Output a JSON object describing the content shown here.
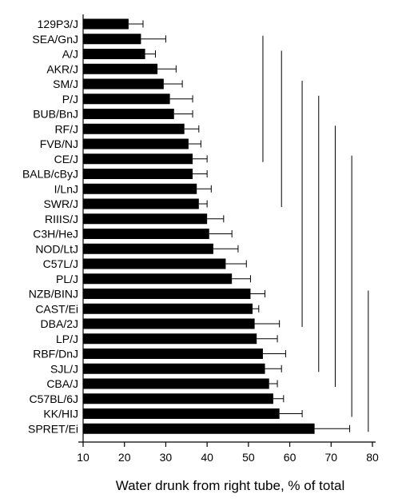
{
  "chart_data": {
    "type": "bar",
    "orientation": "horizontal",
    "title": "",
    "xlabel": "Water drunk from right tube, % of total",
    "ylabel": "",
    "xlim": [
      10,
      80
    ],
    "xticks": [
      10,
      20,
      30,
      40,
      50,
      60,
      70,
      80
    ],
    "grid": false,
    "error_bars": "one-sided (right)",
    "bar_color": "#000000",
    "categories": [
      "129P3/J",
      "SEA/GnJ",
      "A/J",
      "AKR/J",
      "SM/J",
      "P/J",
      "BUB/BnJ",
      "RF/J",
      "FVB/NJ",
      "CE/J",
      "BALB/cByJ",
      "I/LnJ",
      "SWR/J",
      "RIIIS/J",
      "C3H/HeJ",
      "NOD/LtJ",
      "C57L/J",
      "PL/J",
      "NZB/BINJ",
      "CAST/Ei",
      "DBA/2J",
      "LP/J",
      "RBF/DnJ",
      "SJL/J",
      "CBA/J",
      "C57BL/6J",
      "KK/HIJ",
      "SPRET/Ei"
    ],
    "values": [
      21.0,
      24.0,
      25.0,
      28.0,
      29.5,
      31.0,
      32.0,
      34.5,
      35.5,
      36.5,
      36.5,
      37.5,
      38.0,
      40.0,
      40.5,
      41.5,
      44.5,
      46.0,
      50.5,
      51.0,
      51.5,
      52.0,
      53.5,
      54.0,
      55.0,
      56.0,
      57.5,
      66.0
    ],
    "errors": [
      3.5,
      6.0,
      2.5,
      4.5,
      4.5,
      5.5,
      4.5,
      3.5,
      3.0,
      3.5,
      3.5,
      3.5,
      2.0,
      4.0,
      5.5,
      6.0,
      5.0,
      4.5,
      3.5,
      1.5,
      6.0,
      5.0,
      5.5,
      4.0,
      2.0,
      2.5,
      5.5,
      8.5
    ],
    "group_lines": [
      {
        "x": 53.5,
        "from": "SEA/GnJ",
        "to": "CE/J"
      },
      {
        "x": 58.0,
        "from": "A/J",
        "to": "SWR/J"
      },
      {
        "x": 63.0,
        "from": "SM/J",
        "to": "DBA/2J"
      },
      {
        "x": 67.0,
        "from": "P/J",
        "to": "SJL/J"
      },
      {
        "x": 71.0,
        "from": "RF/J",
        "to": "CBA/J"
      },
      {
        "x": 75.0,
        "from": "CE/J",
        "to": "KK/HIJ"
      },
      {
        "x": 79.0,
        "from": "NZB/BINJ",
        "to": "SPRET/Ei"
      }
    ]
  }
}
